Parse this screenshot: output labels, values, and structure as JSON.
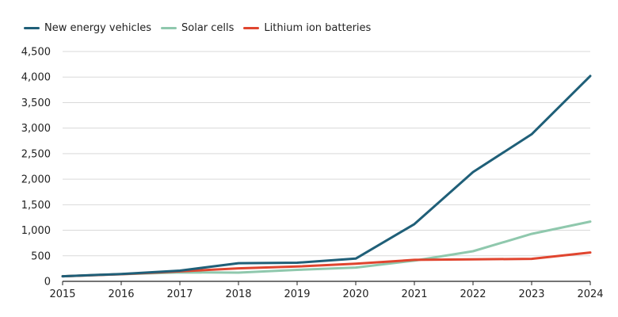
{
  "chart_data": {
    "type": "line",
    "title": "",
    "xlabel": "",
    "ylabel": "",
    "x": [
      2015,
      2016,
      2017,
      2018,
      2019,
      2020,
      2021,
      2022,
      2023,
      2024
    ],
    "ylim": [
      0,
      4500
    ],
    "yticks": [
      0,
      500,
      1000,
      1500,
      2000,
      2500,
      3000,
      3500,
      4000,
      4500
    ],
    "ytick_labels": [
      "0",
      "500",
      "1,000",
      "1,500",
      "2,000",
      "2,500",
      "3,000",
      "3,500",
      "4,000",
      "4,500"
    ],
    "grid": true,
    "legend_position": "top-left",
    "series": [
      {
        "name": "New energy vehicles",
        "color": "#1f5f78",
        "values": [
          100,
          145,
          210,
          355,
          365,
          445,
          1120,
          2140,
          2880,
          4020
        ]
      },
      {
        "name": "Solar cells",
        "color": "#8fc8ad",
        "values": [
          100,
          140,
          175,
          170,
          225,
          270,
          405,
          590,
          930,
          1170
        ]
      },
      {
        "name": "Lithium ion batteries",
        "color": "#e0452f",
        "values": [
          100,
          140,
          195,
          255,
          290,
          345,
          420,
          430,
          440,
          565
        ]
      }
    ]
  }
}
